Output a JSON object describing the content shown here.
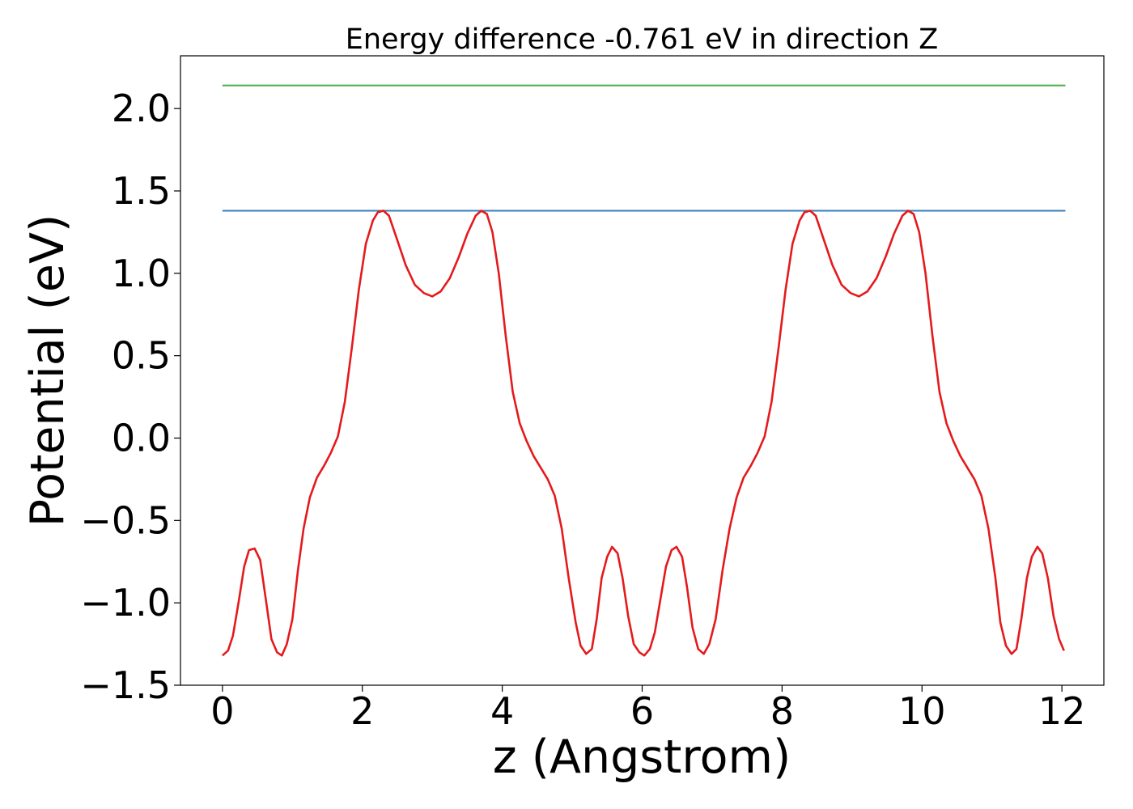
{
  "chart_data": {
    "type": "line",
    "title": "Energy difference -0.761 eV in direction Z",
    "xlabel": "z (Angstrom)",
    "ylabel": "Potential (eV)",
    "xlim": [
      -0.6,
      12.6
    ],
    "ylim": [
      -1.5,
      2.32
    ],
    "xticks": [
      0,
      2,
      4,
      6,
      8,
      10,
      12
    ],
    "xtick_labels": [
      "0",
      "2",
      "4",
      "6",
      "8",
      "10",
      "12"
    ],
    "yticks": [
      -1.5,
      -1.0,
      -0.5,
      0.0,
      0.5,
      1.0,
      1.5,
      2.0
    ],
    "ytick_labels": [
      "−1.5",
      "−1.0",
      "−0.5",
      "0.0",
      "0.5",
      "1.0",
      "1.5",
      "2.0"
    ],
    "grid": false,
    "colors": {
      "potential": "#e41a1c",
      "level_lower": "#377eb8",
      "level_upper": "#4daf4a"
    },
    "hlines": [
      {
        "y": 1.38,
        "x": [
          0,
          12.05
        ],
        "color": "#377eb8"
      },
      {
        "y": 2.14,
        "x": [
          0,
          12.05
        ],
        "color": "#4daf4a"
      }
    ],
    "series": [
      {
        "color": "#e41a1c",
        "x": [
          0.0,
          0.08,
          0.15,
          0.23,
          0.31,
          0.38,
          0.46,
          0.54,
          0.62,
          0.7,
          0.78,
          0.85,
          0.92,
          1.0,
          1.08,
          1.16,
          1.25,
          1.35,
          1.45,
          1.55,
          1.65,
          1.75,
          1.85,
          1.95,
          2.05,
          2.15,
          2.22,
          2.3,
          2.38,
          2.5,
          2.62,
          2.75,
          2.88,
          3.0,
          3.12,
          3.25,
          3.38,
          3.5,
          3.62,
          3.7,
          3.78,
          3.86,
          3.95,
          4.05,
          4.15,
          4.25,
          4.35,
          4.45,
          4.55,
          4.65,
          4.75,
          4.85,
          4.95,
          5.05,
          5.12,
          5.2,
          5.28,
          5.35,
          5.42,
          5.5,
          5.57,
          5.65,
          5.72,
          5.8,
          5.88,
          5.96,
          6.03,
          6.11,
          6.18,
          6.26,
          6.34,
          6.42,
          6.49,
          6.57,
          6.64,
          6.72,
          6.8,
          6.88,
          6.96,
          7.05,
          7.15,
          7.25,
          7.35,
          7.45,
          7.55,
          7.65,
          7.75,
          7.85,
          7.95,
          8.05,
          8.15,
          8.25,
          8.32,
          8.4,
          8.48,
          8.6,
          8.72,
          8.85,
          8.98,
          9.1,
          9.22,
          9.35,
          9.48,
          9.6,
          9.72,
          9.8,
          9.88,
          9.96,
          10.05,
          10.15,
          10.25,
          10.35,
          10.45,
          10.55,
          10.65,
          10.75,
          10.85,
          10.95,
          11.05,
          11.12,
          11.2,
          11.28,
          11.35,
          11.42,
          11.5,
          11.57,
          11.65,
          11.72,
          11.8,
          11.88,
          11.96,
          12.03
        ],
        "y": [
          -1.32,
          -1.29,
          -1.2,
          -1.0,
          -0.78,
          -0.68,
          -0.67,
          -0.74,
          -0.98,
          -1.22,
          -1.3,
          -1.32,
          -1.25,
          -1.1,
          -0.8,
          -0.55,
          -0.36,
          -0.24,
          -0.17,
          -0.09,
          0.01,
          0.22,
          0.55,
          0.9,
          1.18,
          1.32,
          1.37,
          1.38,
          1.35,
          1.2,
          1.05,
          0.93,
          0.88,
          0.86,
          0.89,
          0.97,
          1.1,
          1.24,
          1.35,
          1.38,
          1.36,
          1.25,
          1.0,
          0.62,
          0.28,
          0.09,
          -0.02,
          -0.11,
          -0.18,
          -0.25,
          -0.35,
          -0.55,
          -0.85,
          -1.12,
          -1.26,
          -1.31,
          -1.28,
          -1.1,
          -0.85,
          -0.72,
          -0.66,
          -0.7,
          -0.85,
          -1.08,
          -1.25,
          -1.3,
          -1.32,
          -1.28,
          -1.18,
          -0.98,
          -0.78,
          -0.68,
          -0.66,
          -0.72,
          -0.9,
          -1.15,
          -1.28,
          -1.31,
          -1.25,
          -1.1,
          -0.8,
          -0.55,
          -0.36,
          -0.24,
          -0.17,
          -0.09,
          0.01,
          0.22,
          0.55,
          0.9,
          1.18,
          1.32,
          1.37,
          1.38,
          1.35,
          1.2,
          1.05,
          0.93,
          0.88,
          0.86,
          0.89,
          0.97,
          1.1,
          1.24,
          1.35,
          1.38,
          1.36,
          1.25,
          1.0,
          0.62,
          0.28,
          0.09,
          -0.02,
          -0.11,
          -0.18,
          -0.25,
          -0.35,
          -0.55,
          -0.85,
          -1.12,
          -1.26,
          -1.31,
          -1.28,
          -1.1,
          -0.85,
          -0.72,
          -0.66,
          -0.7,
          -0.85,
          -1.08,
          -1.22,
          -1.29
        ]
      }
    ]
  }
}
